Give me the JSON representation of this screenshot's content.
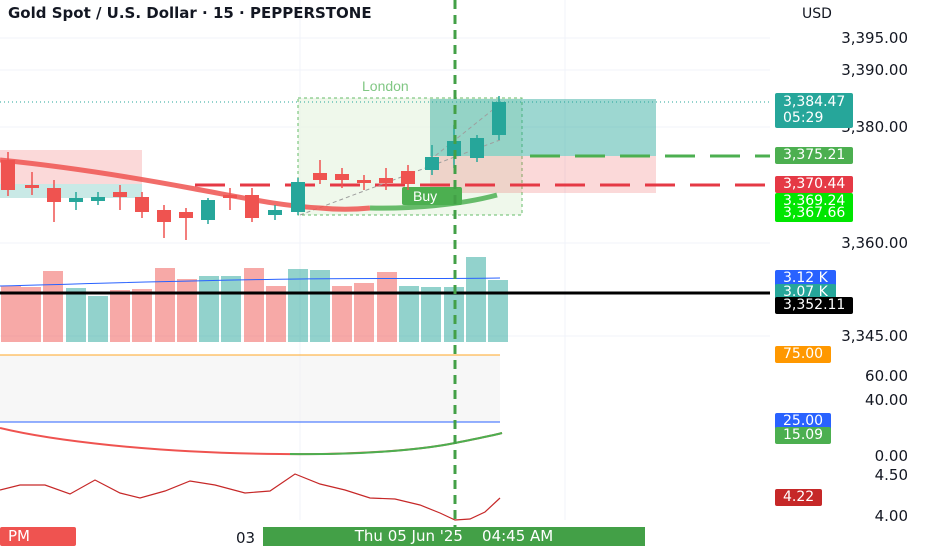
{
  "header": {
    "symbol_title": "Gold Spot / U.S. Dollar · 15 · PEPPERSTONE"
  },
  "price_axis": {
    "currency": "USD",
    "tick_labels": [
      "3,395.00",
      "3,390.00",
      "3,380.00",
      "3,360.00",
      "3,345.00"
    ],
    "indicator_ticks": [
      "60.00",
      "40.00",
      "0.00",
      "4.50",
      "4.00"
    ]
  },
  "badges": {
    "last_price": "3,384.47",
    "countdown": "05:29",
    "take_profit": "3,375.21",
    "stop_loss": "3,370.44",
    "level_a": "3,369.24",
    "level_b": "3,367.66",
    "volume_a": "3.12 K",
    "volume_b": "3.07 K",
    "hline_price": "3,352.11",
    "rsi_upper": "75.00",
    "rsi_lower": "25.00",
    "indicator_value": "15.09",
    "osc_value": "4.22"
  },
  "chart": {
    "session_label": "London",
    "buy_label": "Buy"
  },
  "time_axis": {
    "session_badge": "PM",
    "date_prefix": "03",
    "cursor_time": "Thu 05 Jun '25    04:45 AM"
  },
  "colors": {
    "bull": "#26a69a",
    "bear": "#ef5350",
    "buy_green": "#4caf50",
    "cursor_green": "#43a047",
    "stop_red": "#e53945"
  }
}
